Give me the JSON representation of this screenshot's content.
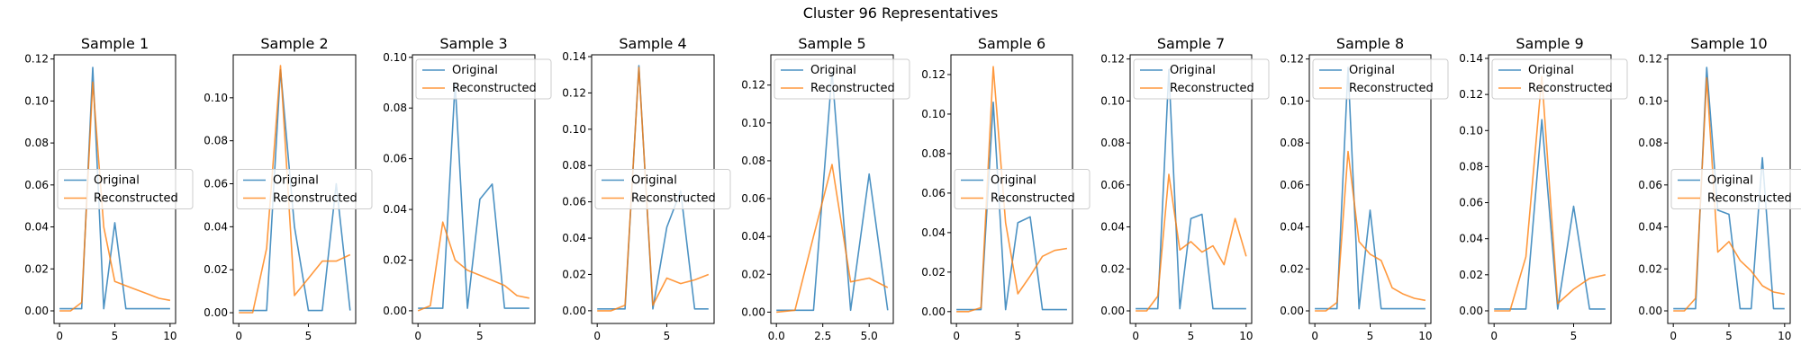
{
  "figure": {
    "suptitle": "Cluster 96 Representatives"
  },
  "colors": {
    "original": "#1f77b4",
    "reconstructed": "#ff7f0e"
  },
  "chart_data": [
    {
      "type": "line",
      "title": "Sample 1",
      "xlim": [
        -0.5,
        10.5
      ],
      "ylim": [
        -0.006,
        0.122
      ],
      "xticks": [
        0,
        5,
        10
      ],
      "yticks": [
        0.0,
        0.02,
        0.04,
        0.06,
        0.08,
        0.1,
        0.12
      ],
      "ytick_decimals": 2,
      "legend": "center-left",
      "series": [
        {
          "name": "Original",
          "x": [
            0,
            1,
            2,
            3,
            4,
            5,
            6,
            7,
            8,
            9,
            10
          ],
          "y": [
            0.001,
            0.001,
            0.001,
            0.116,
            0.001,
            0.042,
            0.001,
            0.001,
            0.001,
            0.001,
            0.001
          ]
        },
        {
          "name": "Reconstructed",
          "x": [
            0,
            1,
            2,
            3,
            4,
            5,
            6,
            7,
            8,
            9,
            10
          ],
          "y": [
            0.0,
            0.0,
            0.004,
            0.109,
            0.04,
            0.014,
            0.012,
            0.01,
            0.008,
            0.006,
            0.005
          ]
        }
      ]
    },
    {
      "type": "line",
      "title": "Sample 2",
      "xlim": [
        -0.4,
        8.4
      ],
      "ylim": [
        -0.005,
        0.12
      ],
      "xticks": [
        0,
        5
      ],
      "yticks": [
        0.0,
        0.02,
        0.04,
        0.06,
        0.08,
        0.1
      ],
      "ytick_decimals": 2,
      "legend": "center-left",
      "series": [
        {
          "name": "Original",
          "x": [
            0,
            1,
            2,
            3,
            4,
            5,
            6,
            7,
            8
          ],
          "y": [
            0.001,
            0.001,
            0.001,
            0.113,
            0.04,
            0.001,
            0.001,
            0.06,
            0.001
          ]
        },
        {
          "name": "Reconstructed",
          "x": [
            0,
            1,
            2,
            3,
            4,
            5,
            6,
            7,
            8
          ],
          "y": [
            0.0,
            0.0,
            0.03,
            0.115,
            0.008,
            0.016,
            0.024,
            0.024,
            0.027
          ]
        }
      ]
    },
    {
      "type": "line",
      "title": "Sample 3",
      "xlim": [
        -0.45,
        9.45
      ],
      "ylim": [
        -0.005,
        0.101
      ],
      "xticks": [
        0,
        5
      ],
      "yticks": [
        0.0,
        0.02,
        0.04,
        0.06,
        0.08,
        0.1
      ],
      "ytick_decimals": 2,
      "legend": "upper-left",
      "series": [
        {
          "name": "Original",
          "x": [
            0,
            1,
            2,
            3,
            4,
            5,
            6,
            7,
            8,
            9
          ],
          "y": [
            0.001,
            0.001,
            0.001,
            0.09,
            0.001,
            0.044,
            0.05,
            0.001,
            0.001,
            0.001
          ]
        },
        {
          "name": "Reconstructed",
          "x": [
            0,
            1,
            2,
            3,
            4,
            5,
            6,
            7,
            8,
            9
          ],
          "y": [
            0.0,
            0.002,
            0.035,
            0.02,
            0.016,
            0.014,
            0.012,
            0.01,
            0.006,
            0.005
          ]
        }
      ]
    },
    {
      "type": "line",
      "title": "Sample 4",
      "xlim": [
        -0.4,
        8.4
      ],
      "ylim": [
        -0.007,
        0.141
      ],
      "xticks": [
        0,
        5
      ],
      "yticks": [
        0.0,
        0.02,
        0.04,
        0.06,
        0.08,
        0.1,
        0.12,
        0.14
      ],
      "ytick_decimals": 2,
      "legend": "center-left",
      "series": [
        {
          "name": "Original",
          "x": [
            0,
            1,
            2,
            3,
            4,
            5,
            6,
            7,
            8
          ],
          "y": [
            0.001,
            0.001,
            0.001,
            0.135,
            0.001,
            0.046,
            0.066,
            0.001,
            0.001
          ]
        },
        {
          "name": "Reconstructed",
          "x": [
            0,
            1,
            2,
            3,
            4,
            5,
            6,
            7,
            8
          ],
          "y": [
            0.0,
            0.0,
            0.003,
            0.134,
            0.003,
            0.018,
            0.015,
            0.017,
            0.02
          ]
        }
      ]
    },
    {
      "type": "line",
      "title": "Sample 5",
      "xlim": [
        -0.3,
        6.3
      ],
      "ylim": [
        -0.006,
        0.136
      ],
      "xticks": [
        0.0,
        2.5,
        5.0
      ],
      "xtick_decimals": 1,
      "yticks": [
        0.0,
        0.02,
        0.04,
        0.06,
        0.08,
        0.1,
        0.12
      ],
      "ytick_decimals": 2,
      "legend": "upper-left",
      "series": [
        {
          "name": "Original",
          "x": [
            0,
            1,
            2,
            3,
            4,
            5,
            6
          ],
          "y": [
            0.001,
            0.001,
            0.001,
            0.127,
            0.001,
            0.073,
            0.001
          ]
        },
        {
          "name": "Reconstructed",
          "x": [
            0,
            1,
            2,
            3,
            4,
            5,
            6
          ],
          "y": [
            0.0,
            0.001,
            0.04,
            0.078,
            0.016,
            0.018,
            0.013
          ]
        }
      ]
    },
    {
      "type": "line",
      "title": "Sample 6",
      "xlim": [
        -0.45,
        9.45
      ],
      "ylim": [
        -0.006,
        0.13
      ],
      "xticks": [
        0,
        5
      ],
      "yticks": [
        0.0,
        0.02,
        0.04,
        0.06,
        0.08,
        0.1,
        0.12
      ],
      "ytick_decimals": 2,
      "legend": "center-left",
      "series": [
        {
          "name": "Original",
          "x": [
            0,
            1,
            2,
            3,
            4,
            5,
            6,
            7,
            8,
            9
          ],
          "y": [
            0.001,
            0.001,
            0.001,
            0.106,
            0.001,
            0.045,
            0.048,
            0.001,
            0.001,
            0.001
          ]
        },
        {
          "name": "Reconstructed",
          "x": [
            0,
            1,
            2,
            3,
            4,
            5,
            6,
            7,
            8,
            9
          ],
          "y": [
            0.0,
            0.0,
            0.002,
            0.124,
            0.045,
            0.009,
            0.018,
            0.028,
            0.031,
            0.032
          ]
        }
      ]
    },
    {
      "type": "line",
      "title": "Sample 7",
      "xlim": [
        -0.5,
        10.5
      ],
      "ylim": [
        -0.006,
        0.122
      ],
      "xticks": [
        0,
        5,
        10
      ],
      "yticks": [
        0.0,
        0.02,
        0.04,
        0.06,
        0.08,
        0.1,
        0.12
      ],
      "ytick_decimals": 2,
      "legend": "upper-left",
      "series": [
        {
          "name": "Original",
          "x": [
            0,
            1,
            2,
            3,
            4,
            5,
            6,
            7,
            8,
            9,
            10
          ],
          "y": [
            0.001,
            0.001,
            0.001,
            0.115,
            0.001,
            0.044,
            0.046,
            0.001,
            0.001,
            0.001,
            0.001
          ]
        },
        {
          "name": "Reconstructed",
          "x": [
            0,
            1,
            2,
            3,
            4,
            5,
            6,
            7,
            8,
            9,
            10
          ],
          "y": [
            0.0,
            0.0,
            0.007,
            0.065,
            0.029,
            0.033,
            0.028,
            0.031,
            0.022,
            0.044,
            0.026
          ]
        }
      ]
    },
    {
      "type": "line",
      "title": "Sample 8",
      "xlim": [
        -0.5,
        10.5
      ],
      "ylim": [
        -0.006,
        0.122
      ],
      "xticks": [
        0,
        5,
        10
      ],
      "yticks": [
        0.0,
        0.02,
        0.04,
        0.06,
        0.08,
        0.1,
        0.12
      ],
      "ytick_decimals": 2,
      "legend": "upper-left",
      "series": [
        {
          "name": "Original",
          "x": [
            0,
            1,
            2,
            3,
            4,
            5,
            6,
            7,
            8,
            9,
            10
          ],
          "y": [
            0.001,
            0.001,
            0.001,
            0.116,
            0.001,
            0.048,
            0.001,
            0.001,
            0.001,
            0.001,
            0.001
          ]
        },
        {
          "name": "Reconstructed",
          "x": [
            0,
            1,
            2,
            3,
            4,
            5,
            6,
            7,
            8,
            9,
            10
          ],
          "y": [
            0.0,
            0.0,
            0.004,
            0.076,
            0.033,
            0.027,
            0.024,
            0.011,
            0.008,
            0.006,
            0.005
          ]
        }
      ]
    },
    {
      "type": "line",
      "title": "Sample 9",
      "xlim": [
        -0.35,
        7.35
      ],
      "ylim": [
        -0.007,
        0.142
      ],
      "xticks": [
        0,
        5
      ],
      "yticks": [
        0.0,
        0.02,
        0.04,
        0.06,
        0.08,
        0.1,
        0.12,
        0.14
      ],
      "ytick_decimals": 2,
      "legend": "upper-left",
      "series": [
        {
          "name": "Original",
          "x": [
            0,
            1,
            2,
            3,
            4,
            5,
            6,
            7
          ],
          "y": [
            0.001,
            0.001,
            0.001,
            0.106,
            0.001,
            0.058,
            0.001,
            0.001
          ]
        },
        {
          "name": "Reconstructed",
          "x": [
            0,
            1,
            2,
            3,
            4,
            5,
            6,
            7
          ],
          "y": [
            0.0,
            0.0,
            0.03,
            0.13,
            0.004,
            0.012,
            0.018,
            0.02
          ]
        }
      ]
    },
    {
      "type": "line",
      "title": "Sample 10",
      "xlim": [
        -0.5,
        10.5
      ],
      "ylim": [
        -0.006,
        0.122
      ],
      "xticks": [
        0,
        5,
        10
      ],
      "yticks": [
        0.0,
        0.02,
        0.04,
        0.06,
        0.08,
        0.1,
        0.12
      ],
      "ytick_decimals": 2,
      "legend": "center-left",
      "series": [
        {
          "name": "Original",
          "x": [
            0,
            1,
            2,
            3,
            4,
            5,
            6,
            7,
            8,
            9,
            10
          ],
          "y": [
            0.001,
            0.001,
            0.001,
            0.116,
            0.048,
            0.046,
            0.001,
            0.001,
            0.073,
            0.001,
            0.001
          ]
        },
        {
          "name": "Reconstructed",
          "x": [
            0,
            1,
            2,
            3,
            4,
            5,
            6,
            7,
            8,
            9,
            10
          ],
          "y": [
            0.0,
            0.0,
            0.006,
            0.111,
            0.028,
            0.033,
            0.024,
            0.019,
            0.012,
            0.009,
            0.008
          ]
        }
      ]
    }
  ]
}
